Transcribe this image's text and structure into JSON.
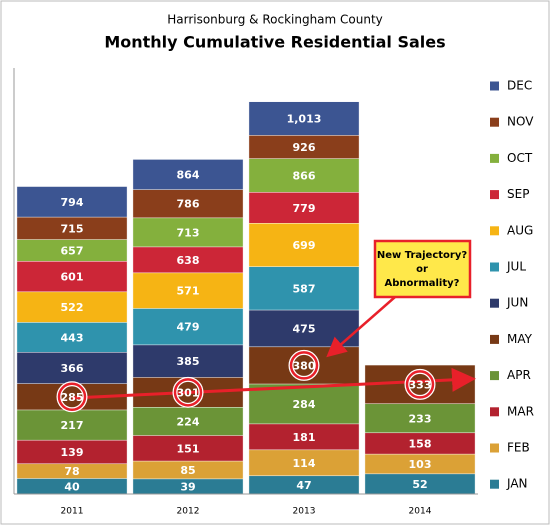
{
  "chart_data": {
    "type": "bar",
    "subtitle": "Harrisonburg & Rockingham County",
    "title": "Monthly Cumulative Residential Sales",
    "categories": [
      "2011",
      "2012",
      "2013",
      "2014"
    ],
    "ylim": [
      0,
      1100
    ],
    "series": [
      {
        "name": "JAN",
        "color": "#2b7c94",
        "values": [
          40,
          39,
          47,
          52
        ]
      },
      {
        "name": "FEB",
        "color": "#dba136",
        "values": [
          78,
          85,
          114,
          103
        ]
      },
      {
        "name": "MAR",
        "color": "#b3222f",
        "values": [
          139,
          151,
          181,
          158
        ]
      },
      {
        "name": "APR",
        "color": "#6b9437",
        "values": [
          217,
          224,
          284,
          233
        ]
      },
      {
        "name": "MAY",
        "color": "#773915",
        "values": [
          285,
          301,
          380,
          333
        ]
      },
      {
        "name": "JUN",
        "color": "#2e3a6b",
        "values": [
          366,
          385,
          475,
          null
        ]
      },
      {
        "name": "JUL",
        "color": "#2f93ad",
        "values": [
          443,
          479,
          587,
          null
        ]
      },
      {
        "name": "AUG",
        "color": "#f6b414",
        "values": [
          522,
          571,
          699,
          null
        ]
      },
      {
        "name": "SEP",
        "color": "#cc2637",
        "values": [
          601,
          638,
          779,
          null
        ]
      },
      {
        "name": "OCT",
        "color": "#84b03d",
        "values": [
          657,
          713,
          866,
          null
        ]
      },
      {
        "name": "NOV",
        "color": "#8a3e1b",
        "values": [
          715,
          786,
          926,
          null
        ]
      },
      {
        "name": "DEC",
        "color": "#3c5592",
        "values": [
          794,
          864,
          1013,
          null
        ],
        "value_labels": [
          "794",
          "864",
          "1,013",
          null
        ]
      }
    ],
    "annotation": [
      "New Trajectory?",
      "or",
      "Abnormality?"
    ]
  }
}
